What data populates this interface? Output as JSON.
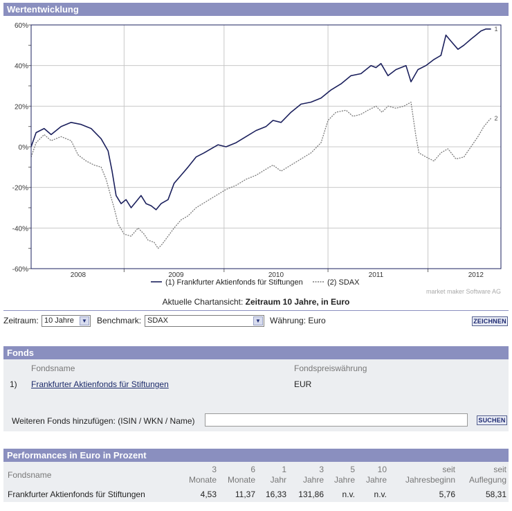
{
  "chart_section": {
    "title": "Wertentwicklung"
  },
  "chart_data": {
    "type": "line",
    "title": "Wertentwicklung",
    "y_ticks": [
      "60%",
      "40%",
      "20%",
      "0%",
      "-20%",
      "-40%",
      "-60%"
    ],
    "ylim": [
      -60,
      60
    ],
    "x_ticks": [
      "2008",
      "2009",
      "2010",
      "2011",
      "2012"
    ],
    "xlim": [
      2007.55,
      2012.25
    ],
    "series": [
      {
        "name": "(1) Frankfurter Aktienfonds für Stiftungen",
        "end_label": "1",
        "color": "#1a1f5c",
        "dash": "",
        "points": [
          [
            2007.55,
            0
          ],
          [
            2007.6,
            7
          ],
          [
            2007.68,
            9
          ],
          [
            2007.75,
            6
          ],
          [
            2007.85,
            10
          ],
          [
            2007.95,
            12
          ],
          [
            2008.05,
            11
          ],
          [
            2008.15,
            9
          ],
          [
            2008.25,
            4
          ],
          [
            2008.32,
            -2
          ],
          [
            2008.36,
            -12
          ],
          [
            2008.4,
            -24
          ],
          [
            2008.45,
            -28
          ],
          [
            2008.5,
            -26
          ],
          [
            2008.55,
            -30
          ],
          [
            2008.6,
            -27
          ],
          [
            2008.65,
            -24
          ],
          [
            2008.7,
            -28
          ],
          [
            2008.75,
            -29
          ],
          [
            2008.8,
            -31
          ],
          [
            2008.85,
            -28
          ],
          [
            2008.92,
            -26
          ],
          [
            2008.98,
            -18
          ],
          [
            2009.05,
            -14
          ],
          [
            2009.12,
            -10
          ],
          [
            2009.2,
            -5
          ],
          [
            2009.28,
            -3
          ],
          [
            2009.35,
            -1
          ],
          [
            2009.42,
            1
          ],
          [
            2009.5,
            0
          ],
          [
            2009.6,
            2
          ],
          [
            2009.7,
            5
          ],
          [
            2009.8,
            8
          ],
          [
            2009.9,
            10
          ],
          [
            2009.97,
            13
          ],
          [
            2010.05,
            12
          ],
          [
            2010.15,
            17
          ],
          [
            2010.25,
            21
          ],
          [
            2010.35,
            22
          ],
          [
            2010.45,
            24
          ],
          [
            2010.55,
            28
          ],
          [
            2010.65,
            31
          ],
          [
            2010.75,
            35
          ],
          [
            2010.85,
            36
          ],
          [
            2010.9,
            38
          ],
          [
            2010.95,
            40
          ],
          [
            2011.0,
            39
          ],
          [
            2011.05,
            41
          ],
          [
            2011.12,
            35
          ],
          [
            2011.2,
            38
          ],
          [
            2011.3,
            40
          ],
          [
            2011.35,
            32
          ],
          [
            2011.42,
            38
          ],
          [
            2011.5,
            40
          ],
          [
            2011.58,
            43
          ],
          [
            2011.65,
            45
          ],
          [
            2011.7,
            55
          ],
          [
            2011.75,
            52
          ],
          [
            2011.82,
            48
          ],
          [
            2011.88,
            50
          ],
          [
            2011.95,
            53
          ],
          [
            2012.0,
            55
          ],
          [
            2012.05,
            57
          ],
          [
            2012.1,
            58
          ],
          [
            2012.15,
            58
          ]
        ]
      },
      {
        "name": "(2) SDAX",
        "end_label": "2",
        "color": "#7a7a7a",
        "dash": "2,1.5",
        "points": [
          [
            2007.55,
            -5
          ],
          [
            2007.6,
            2
          ],
          [
            2007.68,
            6
          ],
          [
            2007.75,
            3
          ],
          [
            2007.85,
            5
          ],
          [
            2007.95,
            3
          ],
          [
            2008.02,
            -4
          ],
          [
            2008.1,
            -7
          ],
          [
            2008.18,
            -9
          ],
          [
            2008.25,
            -10
          ],
          [
            2008.3,
            -16
          ],
          [
            2008.35,
            -25
          ],
          [
            2008.38,
            -30
          ],
          [
            2008.42,
            -38
          ],
          [
            2008.48,
            -43
          ],
          [
            2008.55,
            -44
          ],
          [
            2008.62,
            -40
          ],
          [
            2008.68,
            -43
          ],
          [
            2008.72,
            -46
          ],
          [
            2008.78,
            -47
          ],
          [
            2008.82,
            -50
          ],
          [
            2008.86,
            -48
          ],
          [
            2008.92,
            -44
          ],
          [
            2008.98,
            -40
          ],
          [
            2009.05,
            -36
          ],
          [
            2009.12,
            -34
          ],
          [
            2009.2,
            -30
          ],
          [
            2009.3,
            -27
          ],
          [
            2009.4,
            -24
          ],
          [
            2009.5,
            -21
          ],
          [
            2009.6,
            -19
          ],
          [
            2009.7,
            -16
          ],
          [
            2009.8,
            -14
          ],
          [
            2009.9,
            -11
          ],
          [
            2009.97,
            -9
          ],
          [
            2010.05,
            -12
          ],
          [
            2010.15,
            -9
          ],
          [
            2010.25,
            -6
          ],
          [
            2010.35,
            -3
          ],
          [
            2010.45,
            2
          ],
          [
            2010.52,
            13
          ],
          [
            2010.6,
            17
          ],
          [
            2010.7,
            18
          ],
          [
            2010.77,
            15
          ],
          [
            2010.85,
            16
          ],
          [
            2010.92,
            18
          ],
          [
            2011.0,
            20
          ],
          [
            2011.06,
            17
          ],
          [
            2011.12,
            20
          ],
          [
            2011.2,
            19
          ],
          [
            2011.28,
            20
          ],
          [
            2011.35,
            22
          ],
          [
            2011.4,
            5
          ],
          [
            2011.43,
            -3
          ],
          [
            2011.5,
            -5
          ],
          [
            2011.58,
            -7
          ],
          [
            2011.65,
            -3
          ],
          [
            2011.72,
            -1
          ],
          [
            2011.8,
            -6
          ],
          [
            2011.88,
            -5
          ],
          [
            2011.95,
            0
          ],
          [
            2012.02,
            5
          ],
          [
            2012.08,
            10
          ],
          [
            2012.13,
            13
          ],
          [
            2012.15,
            14
          ]
        ]
      }
    ]
  },
  "chart_footer": {
    "watermark": "market maker Software AG",
    "current_view_prefix": "Aktuelle Chartansicht:",
    "current_view_value": "Zeitraum 10 Jahre, in Euro"
  },
  "controls": {
    "zeitraum_label": "Zeitraum:",
    "zeitraum_value": "10 Jahre",
    "benchmark_label": "Benchmark:",
    "benchmark_value": "SDAX",
    "waehrung_label": "Währung: Euro",
    "zeichnen_label": "ZEICHNEN"
  },
  "fonds": {
    "title": "Fonds",
    "col_name": "Fondsname",
    "col_currency": "Fondspreiswährung",
    "rows": [
      {
        "index": "1)",
        "name": "Frankfurter Aktienfonds für Stiftungen",
        "currency": "EUR"
      }
    ],
    "add_label": "Weiteren Fonds hinzufügen: (ISIN / WKN / Name)",
    "add_value": "",
    "suchen_label": "SUCHEN"
  },
  "performance": {
    "title": "Performances in Euro in Prozent",
    "col_name": "Fondsname",
    "headers": [
      {
        "top": "3",
        "bottom": "Monate"
      },
      {
        "top": "6",
        "bottom": "Monate"
      },
      {
        "top": "1",
        "bottom": "Jahr"
      },
      {
        "top": "3",
        "bottom": "Jahre"
      },
      {
        "top": "5",
        "bottom": "Jahre"
      },
      {
        "top": "10",
        "bottom": "Jahre"
      },
      {
        "top": "seit",
        "bottom": "Jahresbeginn"
      },
      {
        "top": "seit",
        "bottom": "Auflegung"
      }
    ],
    "rows": [
      {
        "name": "Frankfurter Aktienfonds für Stiftungen",
        "values": [
          "4,53",
          "11,37",
          "16,33",
          "131,86",
          "n.v.",
          "n.v.",
          "5,76",
          "58,31"
        ]
      }
    ]
  }
}
